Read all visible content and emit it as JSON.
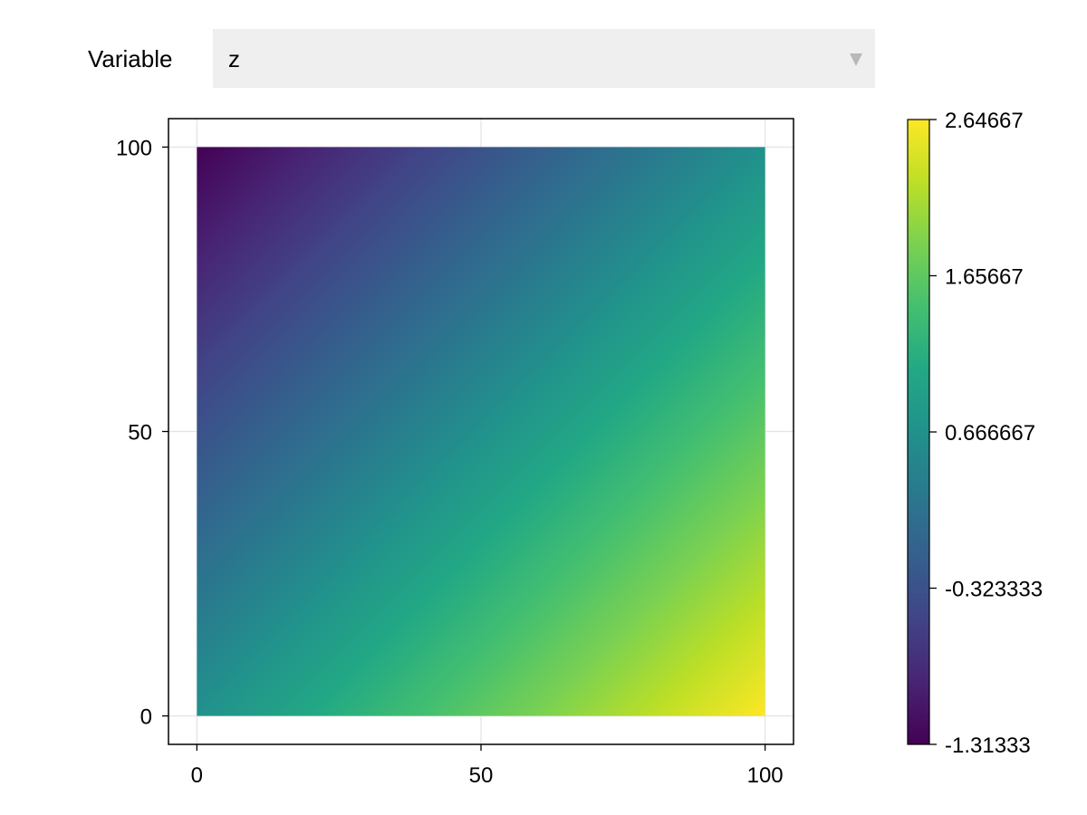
{
  "controls": {
    "variable_label": "Variable",
    "variable_selected": "z",
    "dropdown_chevron_icon": "triangle-down-icon",
    "chevron_color": "#b8b8b8"
  },
  "chart_data": {
    "type": "heatmap",
    "title": "",
    "xlabel": "",
    "ylabel": "",
    "xlim": [
      -5,
      105
    ],
    "ylim": [
      -5,
      105
    ],
    "x_range": [
      0,
      100
    ],
    "y_range": [
      0,
      100
    ],
    "x_ticks": [
      0,
      50,
      100
    ],
    "y_ticks": [
      0,
      50,
      100
    ],
    "grid": true,
    "colormap": "viridis",
    "corner_values": {
      "x0_y0": 0.667,
      "x100_y0": 2.64667,
      "x0_y100": -1.31333,
      "x100_y100": 0.667
    },
    "colorbar": {
      "min": -1.31333,
      "max": 2.64667,
      "ticks": [
        -1.31333,
        -0.323333,
        0.666667,
        1.65667,
        2.64667
      ],
      "tick_labels": [
        "-1.31333",
        "-0.323333",
        "0.666667",
        "1.65667",
        "2.64667"
      ]
    }
  }
}
